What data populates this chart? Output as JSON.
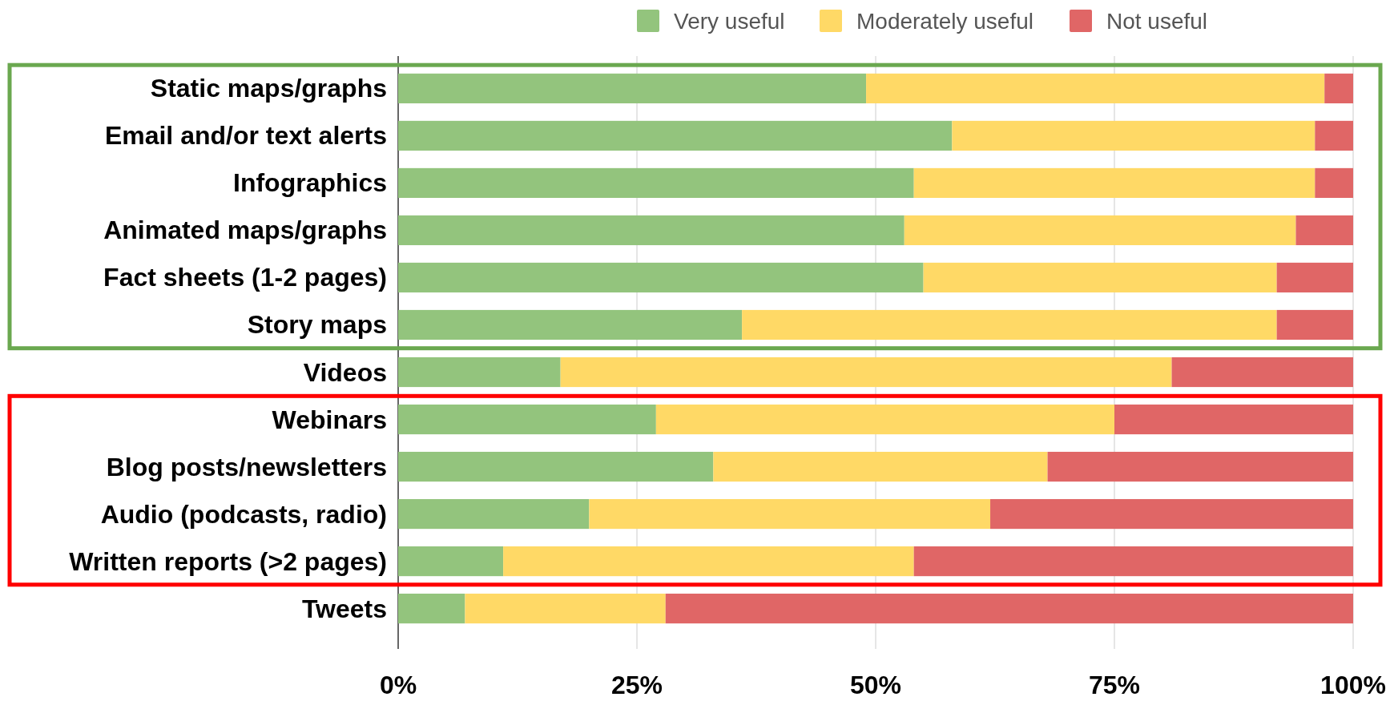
{
  "chart_data": {
    "type": "bar",
    "orientation": "horizontal",
    "stacked": true,
    "categories": [
      "Static maps/graphs",
      "Email and/or text alerts",
      "Infographics",
      "Animated maps/graphs",
      "Fact sheets (1-2 pages)",
      "Story maps",
      "Videos",
      "Webinars",
      "Blog posts/newsletters",
      "Audio (podcasts, radio)",
      "Written reports (>2 pages)",
      "Tweets"
    ],
    "series": [
      {
        "name": "Very useful",
        "color": "#93c47d",
        "values": [
          49,
          58,
          54,
          53,
          55,
          36,
          17,
          27,
          33,
          20,
          11,
          7
        ]
      },
      {
        "name": "Moderately useful",
        "color": "#ffd966",
        "values": [
          48,
          38,
          42,
          41,
          37,
          56,
          64,
          48,
          35,
          42,
          43,
          21
        ]
      },
      {
        "name": "Not useful",
        "color": "#e06666",
        "values": [
          3,
          4,
          4,
          6,
          8,
          8,
          19,
          25,
          32,
          38,
          46,
          72
        ]
      }
    ],
    "xlim": [
      0,
      100
    ],
    "xticks": [
      {
        "value": 0,
        "label": "0%"
      },
      {
        "value": 25,
        "label": "25%"
      },
      {
        "value": 50,
        "label": "50%"
      },
      {
        "value": 75,
        "label": "75%"
      },
      {
        "value": 100,
        "label": "100%"
      }
    ],
    "grid": "x",
    "legend": "top right"
  }
}
